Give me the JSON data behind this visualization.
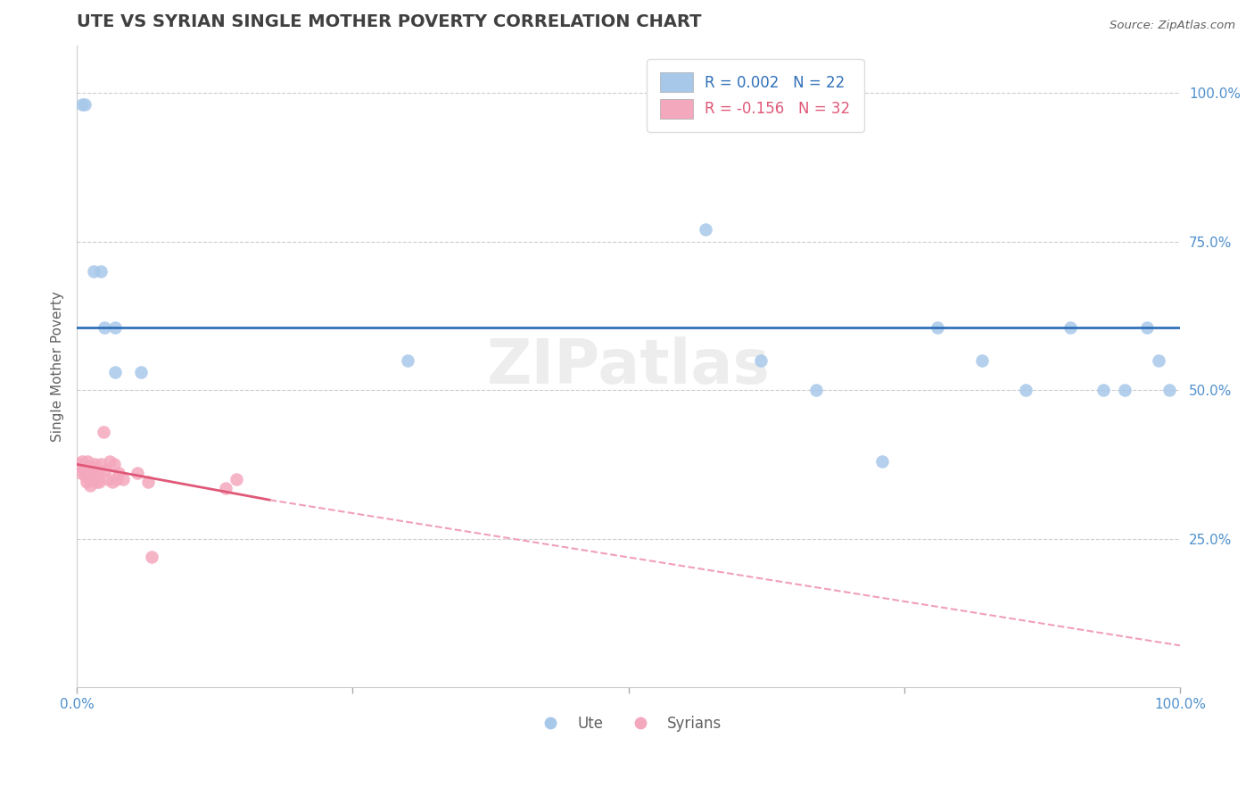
{
  "title": "UTE VS SYRIAN SINGLE MOTHER POVERTY CORRELATION CHART",
  "source": "Source: ZipAtlas.com",
  "ylabel": "Single Mother Poverty",
  "xlim": [
    0,
    1
  ],
  "ylim": [
    0,
    1
  ],
  "ytick_labels": [
    "25.0%",
    "50.0%",
    "75.0%",
    "100.0%"
  ],
  "ytick_positions": [
    0.25,
    0.5,
    0.75,
    1.0
  ],
  "ute_R": 0.002,
  "ute_N": 22,
  "syrian_R": -0.156,
  "syrian_N": 32,
  "ute_color": "#A8C8EA",
  "syrian_color": "#F4A8BE",
  "ute_line_color": "#3070B8",
  "syrian_line_color": "#E05878",
  "syrian_line_dash_color": "#F0A0B8",
  "background_color": "#FFFFFF",
  "watermark": "ZIPatlas",
  "title_color": "#404040",
  "axis_label_color": "#606060",
  "tick_color": "#5090CC",
  "grid_color": "#CCCCCC",
  "ute_line_y": 0.605,
  "syrian_line_start_x": 0.0,
  "syrian_line_start_y": 0.375,
  "syrian_line_end_x": 0.175,
  "syrian_line_end_y": 0.315,
  "syrian_line_dash_end_x": 1.0,
  "syrian_line_dash_end_y": 0.07,
  "ute_x": [
    0.005,
    0.007,
    0.015,
    0.022,
    0.025,
    0.035,
    0.035,
    0.058,
    0.3,
    0.57,
    0.62,
    0.67,
    0.73,
    0.78,
    0.82,
    0.86,
    0.9,
    0.93,
    0.95,
    0.97,
    0.98,
    0.99
  ],
  "ute_y": [
    0.98,
    0.98,
    0.7,
    0.7,
    0.605,
    0.605,
    0.53,
    0.53,
    0.55,
    0.77,
    0.55,
    0.5,
    0.38,
    0.605,
    0.55,
    0.5,
    0.605,
    0.5,
    0.5,
    0.605,
    0.55,
    0.5
  ],
  "syrian_x": [
    0.002,
    0.004,
    0.005,
    0.006,
    0.007,
    0.008,
    0.009,
    0.01,
    0.011,
    0.012,
    0.013,
    0.014,
    0.015,
    0.016,
    0.018,
    0.019,
    0.02,
    0.022,
    0.024,
    0.026,
    0.028,
    0.03,
    0.032,
    0.034,
    0.036,
    0.038,
    0.042,
    0.055,
    0.065,
    0.068,
    0.135,
    0.145
  ],
  "syrian_y": [
    0.375,
    0.36,
    0.38,
    0.37,
    0.36,
    0.355,
    0.345,
    0.38,
    0.365,
    0.34,
    0.37,
    0.35,
    0.36,
    0.375,
    0.345,
    0.36,
    0.345,
    0.375,
    0.43,
    0.365,
    0.35,
    0.38,
    0.345,
    0.375,
    0.35,
    0.36,
    0.35,
    0.36,
    0.345,
    0.22,
    0.335,
    0.35
  ]
}
